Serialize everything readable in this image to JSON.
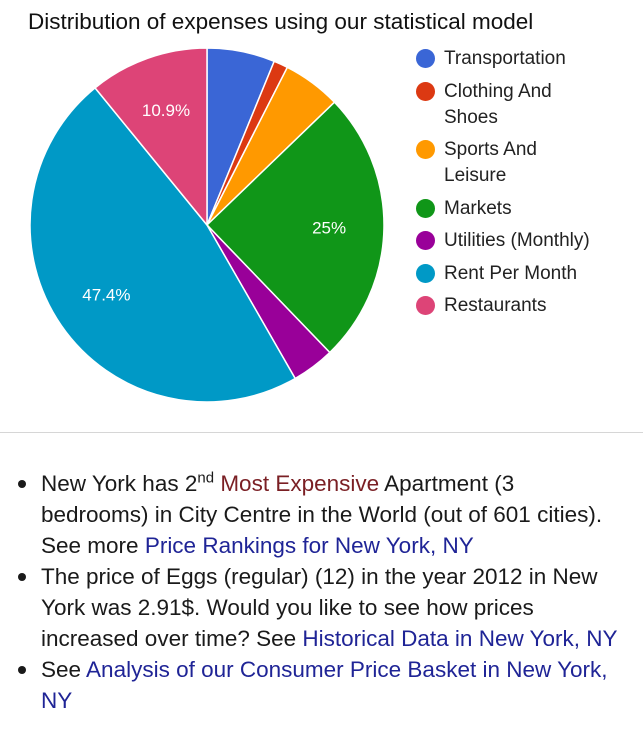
{
  "chart_data": {
    "type": "pie",
    "title": "Distribution of expenses using our statistical model",
    "series": [
      {
        "name": "Transportation",
        "value": 6.2,
        "color": "#3a66d6",
        "label": ""
      },
      {
        "name": "Clothing And Shoes",
        "value": 1.3,
        "color": "#dc3912",
        "label": ""
      },
      {
        "name": "Sports And Leisure",
        "value": 5.3,
        "color": "#ff9900",
        "label": ""
      },
      {
        "name": "Markets",
        "value": 25.0,
        "color": "#109618",
        "label": "25%"
      },
      {
        "name": "Utilities (Monthly)",
        "value": 3.9,
        "color": "#990099",
        "label": ""
      },
      {
        "name": "Rent Per Month",
        "value": 47.4,
        "color": "#0099c6",
        "label": "47.4%"
      },
      {
        "name": "Restaurants",
        "value": 10.9,
        "color": "#dd4477",
        "label": "10.9%"
      }
    ],
    "legend": [
      {
        "line1": "Transportation",
        "line2": ""
      },
      {
        "line1": "Clothing And",
        "line2": "Shoes"
      },
      {
        "line1": "Sports And",
        "line2": "Leisure"
      },
      {
        "line1": "Markets",
        "line2": ""
      },
      {
        "line1": "Utilities (Monthly)",
        "line2": ""
      },
      {
        "line1": "Rent Per Month",
        "line2": ""
      },
      {
        "line1": "Restaurants",
        "line2": ""
      }
    ],
    "legend_position": "right"
  },
  "facts": [
    {
      "parts": [
        {
          "text": "New York has 2",
          "style": "plain"
        },
        {
          "text": "nd",
          "style": "sup"
        },
        {
          "text": " ",
          "style": "plain"
        },
        {
          "text": "Most Expensive",
          "style": "red"
        },
        {
          "text": " Apartment (3 bedrooms) in City Centre in the World (out of 601 cities). See more ",
          "style": "plain"
        },
        {
          "text": "Price Rankings for New York, NY",
          "style": "link"
        }
      ]
    },
    {
      "parts": [
        {
          "text": "The price of Eggs (regular) (12) in the year 2012 in New York was 2.91$. Would you like to see how prices increased over time? See ",
          "style": "plain"
        },
        {
          "text": "Historical Data in New York, NY",
          "style": "link"
        }
      ]
    },
    {
      "parts": [
        {
          "text": "See ",
          "style": "plain"
        },
        {
          "text": "Analysis of our Consumer Price Basket in New York, NY",
          "style": "link"
        }
      ]
    }
  ]
}
